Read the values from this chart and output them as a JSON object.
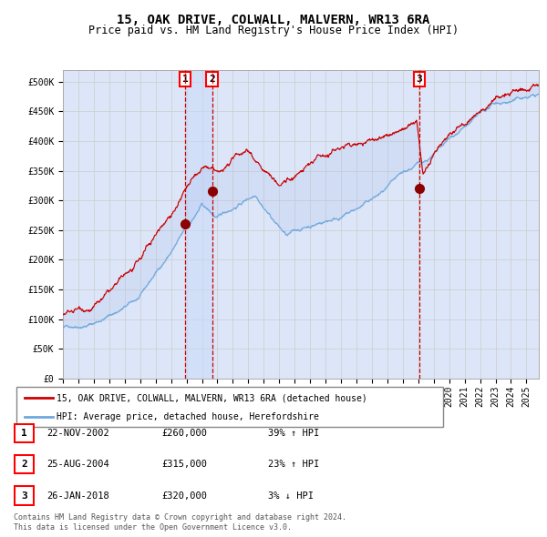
{
  "title": "15, OAK DRIVE, COLWALL, MALVERN, WR13 6RA",
  "subtitle": "Price paid vs. HM Land Registry's House Price Index (HPI)",
  "ylabel_ticks": [
    "£0",
    "£50K",
    "£100K",
    "£150K",
    "£200K",
    "£250K",
    "£300K",
    "£350K",
    "£400K",
    "£450K",
    "£500K"
  ],
  "ytick_values": [
    0,
    50000,
    100000,
    150000,
    200000,
    250000,
    300000,
    350000,
    400000,
    450000,
    500000
  ],
  "ylim": [
    0,
    520000
  ],
  "xlim_start": 1995.0,
  "xlim_end": 2025.8,
  "hpi_color": "#6fa8dc",
  "price_color": "#cc0000",
  "dot_color": "#8b0000",
  "vline_color": "#cc0000",
  "shade_color": "#c9daf8",
  "grid_color": "#cccccc",
  "bg_color": "#dce6f8",
  "sale_events": [
    {
      "label": "1",
      "date": 2002.9,
      "price": 260000,
      "date_str": "22-NOV-2002",
      "price_str": "£260,000",
      "hpi_str": "39% ↑ HPI"
    },
    {
      "label": "2",
      "date": 2004.65,
      "price": 315000,
      "date_str": "25-AUG-2004",
      "price_str": "£315,000",
      "hpi_str": "23% ↑ HPI"
    },
    {
      "label": "3",
      "date": 2018.08,
      "price": 320000,
      "date_str": "26-JAN-2018",
      "price_str": "£320,000",
      "hpi_str": "3% ↓ HPI"
    }
  ],
  "legend_line1": "15, OAK DRIVE, COLWALL, MALVERN, WR13 6RA (detached house)",
  "legend_line2": "HPI: Average price, detached house, Herefordshire",
  "footer1": "Contains HM Land Registry data © Crown copyright and database right 2024.",
  "footer2": "This data is licensed under the Open Government Licence v3.0.",
  "font_family": "monospace",
  "title_fontsize": 10,
  "subtitle_fontsize": 8.5,
  "tick_fontsize": 7,
  "legend_fontsize": 7,
  "table_fontsize": 7.5,
  "footer_fontsize": 6
}
